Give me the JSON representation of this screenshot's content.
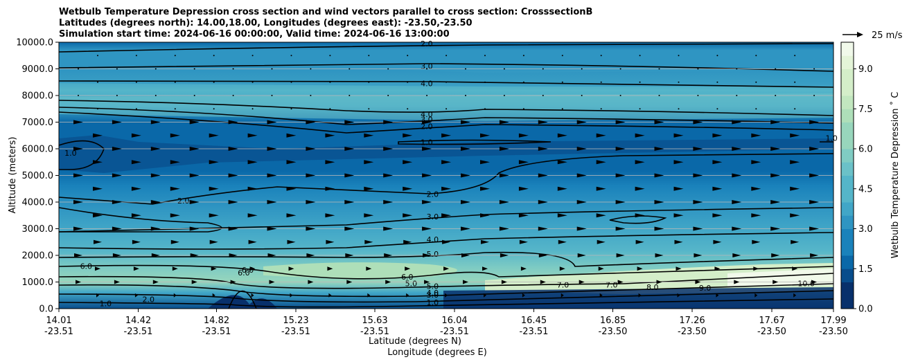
{
  "chart_data": {
    "type": "contourf",
    "title_lines": [
      "Wetbulb Temperature Depression cross section and wind vectors parallel to cross section: CrosssectionB",
      "Latitudes (degrees north): 14.00,18.00, Longitudes (degrees east): -23.50,-23.50",
      "Simulation start time: 2024-06-16 00:00:00, Valid time: 2024-06-16 13:00:00"
    ],
    "ylabel": "Altitude (meters)",
    "xlabel_lines": [
      "Latitude (degrees N)",
      "Longitude (degrees E)"
    ],
    "ylim": [
      0,
      10000
    ],
    "y_ticks": [
      "0.0",
      "1000.0",
      "2000.0",
      "3000.0",
      "4000.0",
      "5000.0",
      "6000.0",
      "7000.0",
      "8000.0",
      "9000.0",
      "10000.0"
    ],
    "x_ticks": [
      {
        "lat": "14.01",
        "lon": "-23.51"
      },
      {
        "lat": "14.42",
        "lon": "-23.51"
      },
      {
        "lat": "14.82",
        "lon": "-23.51"
      },
      {
        "lat": "15.23",
        "lon": "-23.51"
      },
      {
        "lat": "15.63",
        "lon": "-23.51"
      },
      {
        "lat": "16.04",
        "lon": "-23.51"
      },
      {
        "lat": "16.45",
        "lon": "-23.51"
      },
      {
        "lat": "16.85",
        "lon": "-23.50"
      },
      {
        "lat": "17.26",
        "lon": "-23.50"
      },
      {
        "lat": "17.67",
        "lon": "-23.50"
      },
      {
        "lat": "17.99",
        "lon": "-23.50"
      }
    ],
    "colorbar": {
      "label": "Wetbulb Temperature Depression $^\\circ$C",
      "label_text": "Wetbulb Temperature Depression ˚ C",
      "range": [
        0,
        10
      ],
      "ticks": [
        "0.0",
        "1.5",
        "3.0",
        "4.5",
        "6.0",
        "7.5",
        "9.0"
      ]
    },
    "quiver_key": "25 m/s",
    "contour_labels": [
      {
        "text": "2.0",
        "at": [
          15.9,
          9950
        ]
      },
      {
        "text": "3.0",
        "at": [
          15.9,
          9100
        ]
      },
      {
        "text": "4.0",
        "at": [
          15.9,
          8450
        ]
      },
      {
        "text": "4.0",
        "at": [
          15.9,
          7300
        ]
      },
      {
        "text": "3.0",
        "at": [
          15.9,
          7100
        ]
      },
      {
        "text": "2.0",
        "at": [
          15.9,
          6850
        ]
      },
      {
        "text": "1.0",
        "at": [
          15.9,
          6250
        ]
      },
      {
        "text": "1.0",
        "at": [
          14.07,
          5850
        ]
      },
      {
        "text": "1.0",
        "at": [
          17.98,
          6400
        ]
      },
      {
        "text": "2.0",
        "at": [
          14.65,
          4050
        ]
      },
      {
        "text": "2.0",
        "at": [
          15.93,
          4300
        ]
      },
      {
        "text": "3.0",
        "at": [
          15.93,
          3450
        ]
      },
      {
        "text": "4.0",
        "at": [
          15.93,
          2600
        ]
      },
      {
        "text": "5.0",
        "at": [
          15.93,
          2050
        ]
      },
      {
        "text": "6.0",
        "at": [
          14.15,
          1600
        ]
      },
      {
        "text": "6.0",
        "at": [
          14.98,
          1450
        ]
      },
      {
        "text": "6.0",
        "at": [
          15.8,
          1200
        ]
      },
      {
        "text": "5.0",
        "at": [
          15.82,
          950
        ]
      },
      {
        "text": "5.0",
        "at": [
          15.93,
          840
        ]
      },
      {
        "text": "4.0",
        "at": [
          15.93,
          600
        ]
      },
      {
        "text": "3.0",
        "at": [
          15.93,
          520
        ]
      },
      {
        "text": "1.0",
        "at": [
          15.93,
          240
        ]
      },
      {
        "text": "2.0",
        "at": [
          14.47,
          350
        ]
      },
      {
        "text": "1.0",
        "at": [
          14.25,
          200
        ]
      },
      {
        "text": "7.0",
        "at": [
          16.6,
          900
        ]
      },
      {
        "text": "7.0",
        "at": [
          16.85,
          900
        ]
      },
      {
        "text": "8.0",
        "at": [
          17.06,
          800
        ]
      },
      {
        "text": "9.0",
        "at": [
          17.33,
          780
        ]
      },
      {
        "text": "10.0",
        "at": [
          17.85,
          950
        ]
      },
      {
        "text": "6.0",
        "at": [
          14.96,
          1350
        ]
      }
    ]
  },
  "colors": {
    "palette": [
      "#08306b",
      "#084d8c",
      "#0a68a8",
      "#1a82bb",
      "#2f95c2",
      "#41a6c7",
      "#55b5c9",
      "#6bc1c8",
      "#80ccc3",
      "#98d6bc",
      "#aedfb9",
      "#c2e7bf",
      "#d4eec9",
      "#e4f4d8",
      "#f1f9ea"
    ]
  }
}
